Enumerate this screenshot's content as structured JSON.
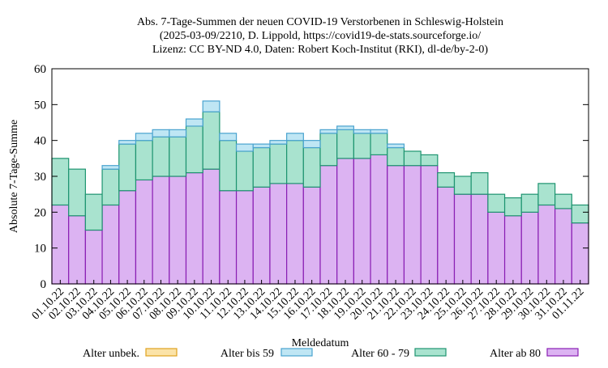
{
  "chart_data": {
    "type": "bar",
    "stacked": true,
    "title_lines": [
      "Abs. 7-Tage-Summen der neuen COVID-19 Verstorbenen in Schleswig-Holstein",
      "(2025-03-09/2210, D. Lippold, https://covid19-de-stats.sourceforge.io/",
      "Lizenz: CC BY-ND 4.0, Daten: Robert Koch-Institut (RKI), dl-de/by-2-0)"
    ],
    "xlabel": "Meldedatum",
    "ylabel": "Absolute 7-Tage-Summe",
    "ylim": [
      0,
      60
    ],
    "yticks": [
      0,
      10,
      20,
      30,
      40,
      50,
      60
    ],
    "grid": false,
    "legend_position": "bottom",
    "categories": [
      "01.10.22",
      "02.10.22",
      "03.10.22",
      "04.10.22",
      "05.10.22",
      "06.10.22",
      "07.10.22",
      "08.10.22",
      "09.10.22",
      "10.10.22",
      "11.10.22",
      "12.10.22",
      "13.10.22",
      "14.10.22",
      "15.10.22",
      "16.10.22",
      "17.10.22",
      "18.10.22",
      "19.10.22",
      "20.10.22",
      "21.10.22",
      "22.10.22",
      "23.10.22",
      "24.10.22",
      "25.10.22",
      "26.10.22",
      "27.10.22",
      "28.10.22",
      "29.10.22",
      "30.10.22",
      "31.10.22",
      "01.11.22"
    ],
    "series": [
      {
        "name": "Alter ab 80",
        "fill": "#dcb3f2",
        "stroke": "#8a1fb4",
        "values": [
          22,
          19,
          15,
          22,
          26,
          29,
          30,
          30,
          31,
          32,
          26,
          26,
          27,
          28,
          28,
          27,
          33,
          35,
          35,
          36,
          33,
          33,
          33,
          27,
          25,
          25,
          20,
          19,
          20,
          22,
          21,
          17
        ]
      },
      {
        "name": "Alter 60 - 79",
        "fill": "#a9e3cf",
        "stroke": "#1e9470",
        "values": [
          13,
          13,
          10,
          10,
          13,
          11,
          11,
          11,
          13,
          16,
          14,
          11,
          11,
          11,
          12,
          11,
          9,
          8,
          7,
          6,
          5,
          4,
          3,
          4,
          5,
          6,
          5,
          5,
          5,
          6,
          4,
          5
        ]
      },
      {
        "name": "Alter bis 59",
        "fill": "#bfe6f4",
        "stroke": "#4aa3cf",
        "values": [
          0,
          0,
          0,
          1,
          1,
          2,
          2,
          2,
          2,
          3,
          2,
          2,
          1,
          1,
          2,
          2,
          1,
          1,
          1,
          1,
          1,
          0,
          0,
          0,
          0,
          0,
          0,
          0,
          0,
          0,
          0,
          0
        ]
      },
      {
        "name": "Alter unbek.",
        "fill": "#fbe3a8",
        "stroke": "#e0a21e",
        "values": [
          0,
          0,
          0,
          0,
          0,
          0,
          0,
          0,
          0,
          0,
          0,
          0,
          0,
          0,
          0,
          0,
          0,
          0,
          0,
          0,
          0,
          0,
          0,
          0,
          0,
          0,
          0,
          0,
          0,
          0,
          0,
          0
        ]
      }
    ],
    "legend_order": [
      "Alter unbek.",
      "Alter bis 59",
      "Alter 60 - 79",
      "Alter ab 80"
    ]
  }
}
